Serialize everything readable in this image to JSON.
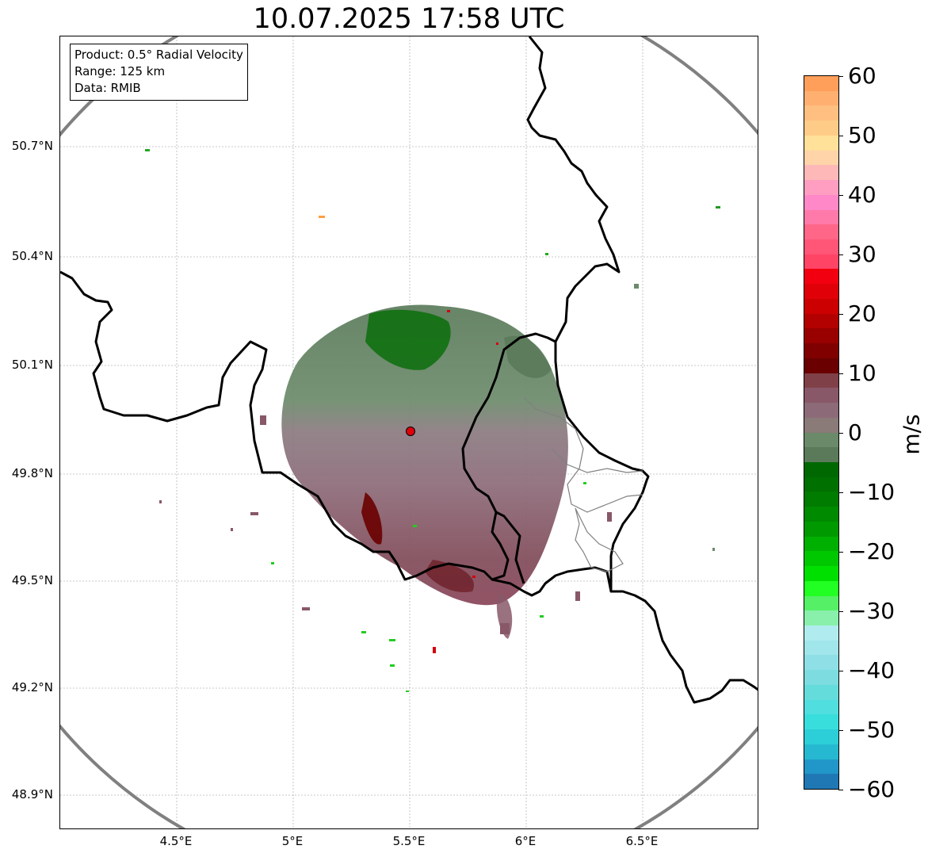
{
  "title": "10.07.2025 17:58 UTC",
  "info_box": {
    "product": "Product: 0.5° Radial Velocity",
    "range": "Range: 125 km",
    "data": "Data: RMIB"
  },
  "lat_labels": [
    "50.7°N",
    "50.4°N",
    "50.1°N",
    "49.8°N",
    "49.5°N",
    "49.2°N",
    "48.9°N"
  ],
  "lon_labels": [
    "4.5°E",
    "5°E",
    "5.5°E",
    "6°E",
    "6.5°E"
  ],
  "colorbar": {
    "unit": "m/s",
    "tick_labels": [
      "60",
      "50",
      "40",
      "30",
      "20",
      "10",
      "0",
      "−10",
      "−20",
      "−30",
      "−40",
      "−50",
      "−60"
    ],
    "range": [
      -60,
      60
    ],
    "colors_top_to_bottom": [
      "#ff9f5a",
      "#ffb070",
      "#ffbf80",
      "#ffcc88",
      "#ffe199",
      "#ffd4a8",
      "#ffb8b8",
      "#ff9ec0",
      "#ff88c8",
      "#ff7aa8",
      "#ff6688",
      "#ff5577",
      "#ff4466",
      "#f20010",
      "#e00008",
      "#cc0000",
      "#b30000",
      "#990000",
      "#800000",
      "#6a0000",
      "#804048",
      "#885868",
      "#8c6a78",
      "#8a7a78",
      "#6b8a6a",
      "#5a7a5a",
      "#006800",
      "#007000",
      "#007c00",
      "#008a00",
      "#009a00",
      "#00b000",
      "#00c800",
      "#00e000",
      "#22ff22",
      "#55f066",
      "#88f0aa",
      "#b0ecef",
      "#a0e6ea",
      "#8ee0e6",
      "#7cdcdf",
      "#64dcdc",
      "#50dede",
      "#38dedc",
      "#2ccfd8",
      "#26b8d0",
      "#2196c8",
      "#1f78b4"
    ]
  },
  "radar": {
    "site_lat": "49.914",
    "site_lon": "5.506",
    "range_ring_color": "#808080",
    "site_marker_color": "#e0000c"
  }
}
